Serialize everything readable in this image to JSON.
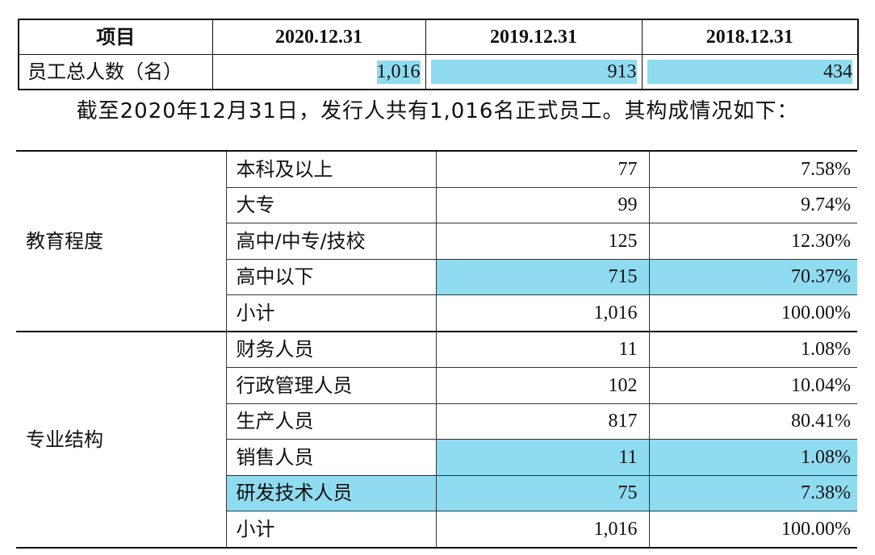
{
  "summary_table": {
    "header": [
      "项目",
      "2020.12.31",
      "2019.12.31",
      "2018.12.31"
    ],
    "row": {
      "label": "员工总人数（名）",
      "values": [
        "1,016",
        "913",
        "434"
      ]
    }
  },
  "sentence": "截至2020年12月31日，发行人共有1,016名正式员工。其构成情况如下：",
  "composition_table": {
    "groups": [
      {
        "name": "教育程度",
        "rows": [
          {
            "category": "本科及以上",
            "count": "77",
            "percent": "7.58%"
          },
          {
            "category": "大专",
            "count": "99",
            "percent": "9.74%"
          },
          {
            "category": "高中/中专/技校",
            "count": "125",
            "percent": "12.30%"
          },
          {
            "category": "高中以下",
            "count": "715",
            "percent": "70.37%"
          },
          {
            "category": "小计",
            "count": "1,016",
            "percent": "100.00%"
          }
        ]
      },
      {
        "name": "专业结构",
        "rows": [
          {
            "category": "财务人员",
            "count": "11",
            "percent": "1.08%"
          },
          {
            "category": "行政管理人员",
            "count": "102",
            "percent": "10.04%"
          },
          {
            "category": "生产人员",
            "count": "817",
            "percent": "80.41%"
          },
          {
            "category": "销售人员",
            "count": "11",
            "percent": "1.08%"
          },
          {
            "category": "研发技术人员",
            "count": "75",
            "percent": "7.38%"
          },
          {
            "category": "小计",
            "count": "1,016",
            "percent": "100.00%"
          }
        ]
      }
    ]
  },
  "colors": {
    "highlight": "#8fdbf0",
    "border": "#111111",
    "text": "#111111"
  }
}
